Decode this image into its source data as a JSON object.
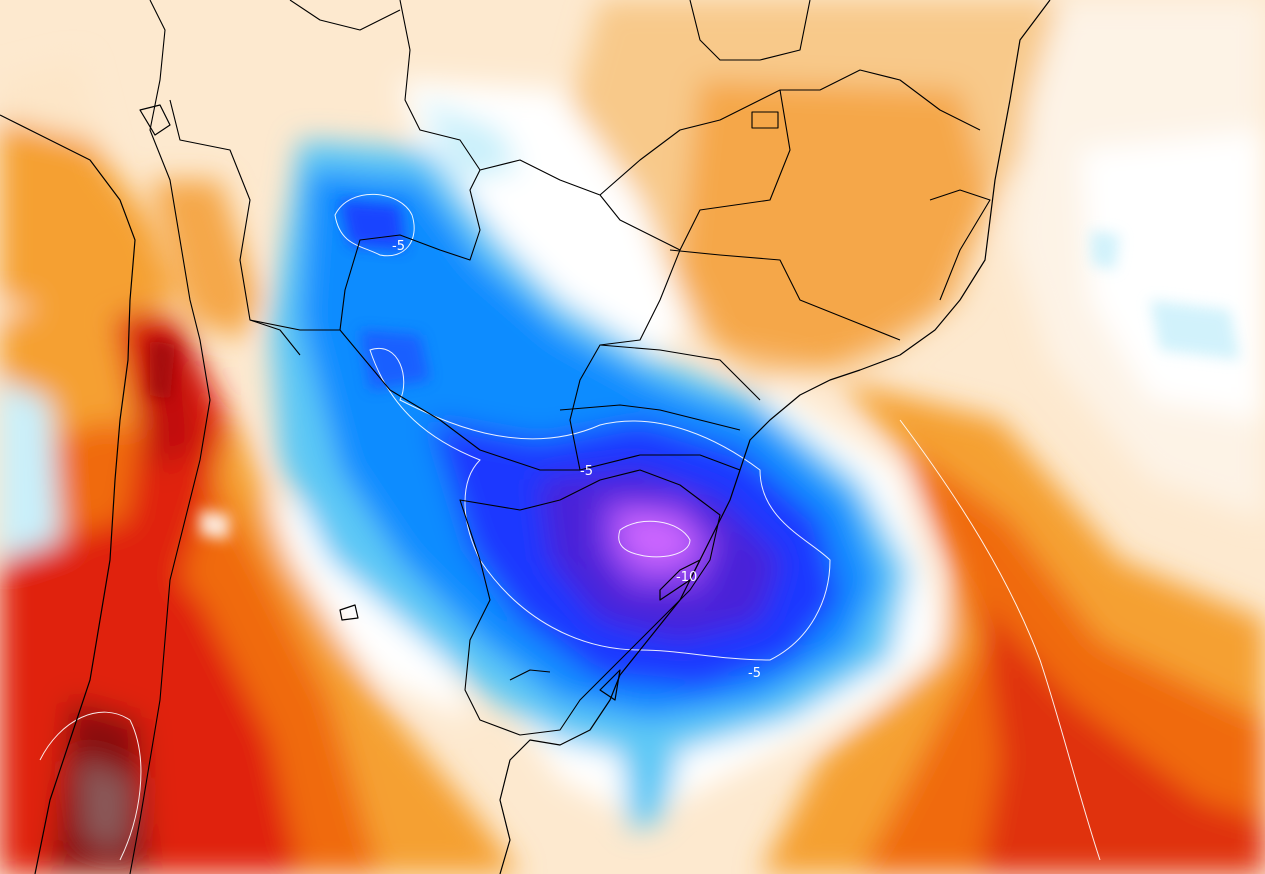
{
  "map": {
    "type": "temperature-anomaly-contour",
    "palette": {
      "very_cold": "#cc66ff",
      "cold_violet": "#5a1ee6",
      "cold_blue": "#1a38ff",
      "blue": "#0f8cff",
      "light_blue": "#5bc8f5",
      "pale_blue": "#c9f0fb",
      "neutral": "#ffffff",
      "pale_orange": "#fde6c8",
      "light_orange": "#f8c98a",
      "orange": "#f5a030",
      "dark_orange": "#f06a10",
      "red": "#e0220e",
      "dark_red": "#a00a0a",
      "maroon": "#6e1a1a"
    },
    "contour_labels": [
      {
        "text": "-5",
        "id": "north"
      },
      {
        "text": "-5",
        "id": "center"
      },
      {
        "text": "-10",
        "id": "core"
      },
      {
        "text": "-5",
        "id": "south"
      }
    ]
  }
}
